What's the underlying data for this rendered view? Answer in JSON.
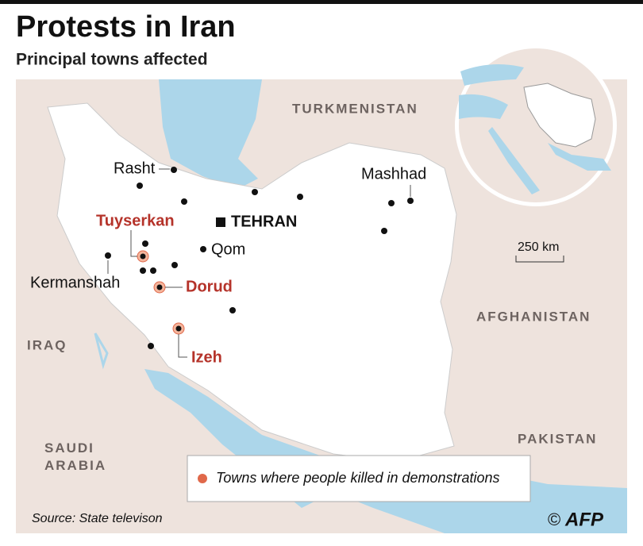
{
  "header": {
    "title": "Protests in Iran",
    "subtitle": "Principal towns affected"
  },
  "countries": [
    "TURKMENISTAN",
    "AFGHANISTAN",
    "IRAQ",
    "PAKISTAN",
    "SAUDI\nARABIA"
  ],
  "cities": {
    "capital": "TEHRAN",
    "towns": [
      "Rasht",
      "Mashhad",
      "Qom",
      "Kermanshah"
    ],
    "killed": [
      "Tuyserkan",
      "Dorud",
      "Izeh"
    ]
  },
  "scale": "250 km",
  "legend": "Towns where people killed in demonstrations",
  "source": "Source: State televison",
  "logo": "AFP"
}
